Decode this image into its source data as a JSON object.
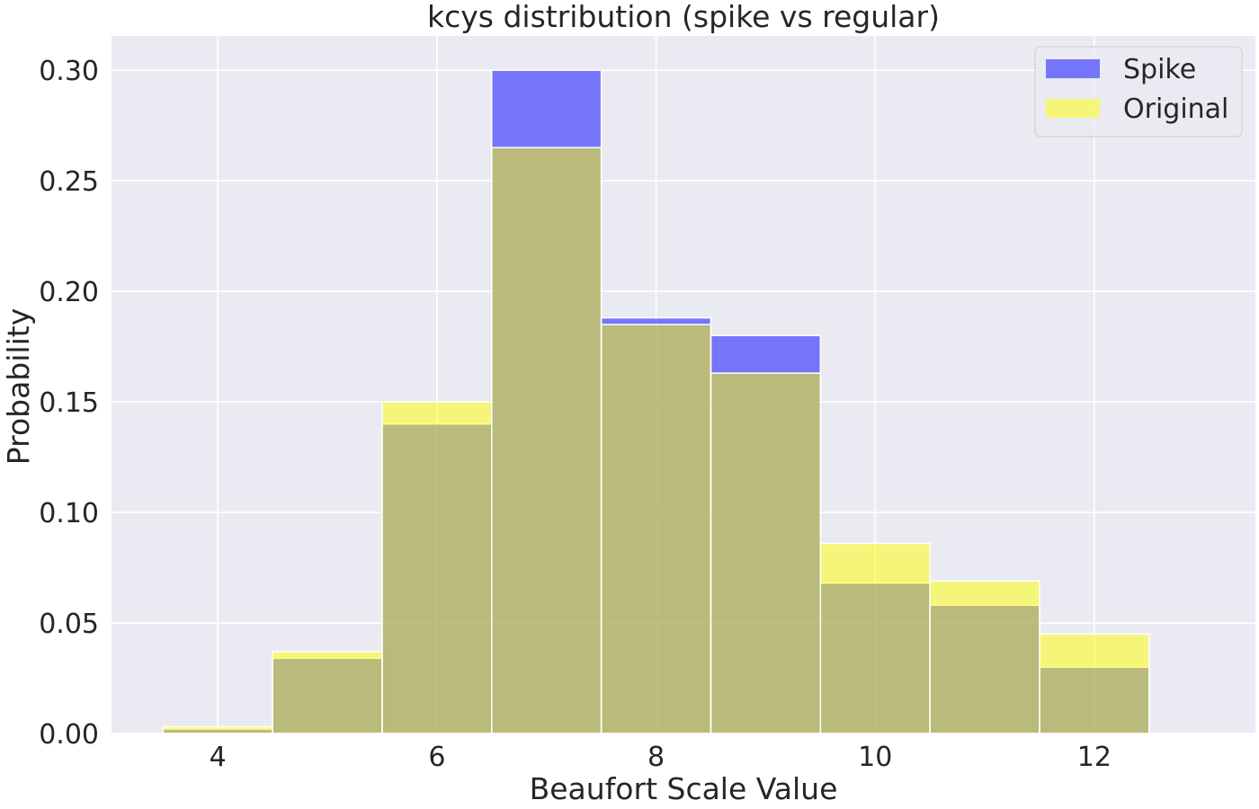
{
  "chart_data": {
    "type": "bar",
    "title": "kcys distribution (spike vs regular)",
    "xlabel": "Beaufort Scale Value",
    "ylabel": "Probability",
    "x": [
      4,
      5,
      6,
      7,
      8,
      9,
      10,
      11,
      12
    ],
    "bin_width": 1,
    "xlim": [
      3.03,
      13.47
    ],
    "ylim": [
      0,
      0.3155
    ],
    "x_ticks": [
      4,
      6,
      8,
      10,
      12
    ],
    "x_tick_labels": [
      "4",
      "6",
      "8",
      "10",
      "12"
    ],
    "y_ticks": [
      0,
      0.05,
      0.1,
      0.15,
      0.2,
      0.25,
      0.3
    ],
    "y_tick_labels": [
      "0.00",
      "0.05",
      "0.10",
      "0.15",
      "0.20",
      "0.25",
      "0.30"
    ],
    "grid": true,
    "legend_position": "top-right",
    "series": [
      {
        "name": "Spike",
        "values": [
          0.002,
          0.034,
          0.14,
          0.3,
          0.188,
          0.18,
          0.068,
          0.058,
          0.03
        ],
        "color": "#0000ff",
        "opacity": 0.5
      },
      {
        "name": "Original",
        "values": [
          0.003,
          0.037,
          0.15,
          0.265,
          0.185,
          0.163,
          0.086,
          0.069,
          0.045
        ],
        "color": "#ffff00",
        "opacity": 0.5
      }
    ]
  },
  "colors": {
    "plot_background": "#eaeaf2",
    "grid": "#ffffff",
    "text": "#262626"
  }
}
